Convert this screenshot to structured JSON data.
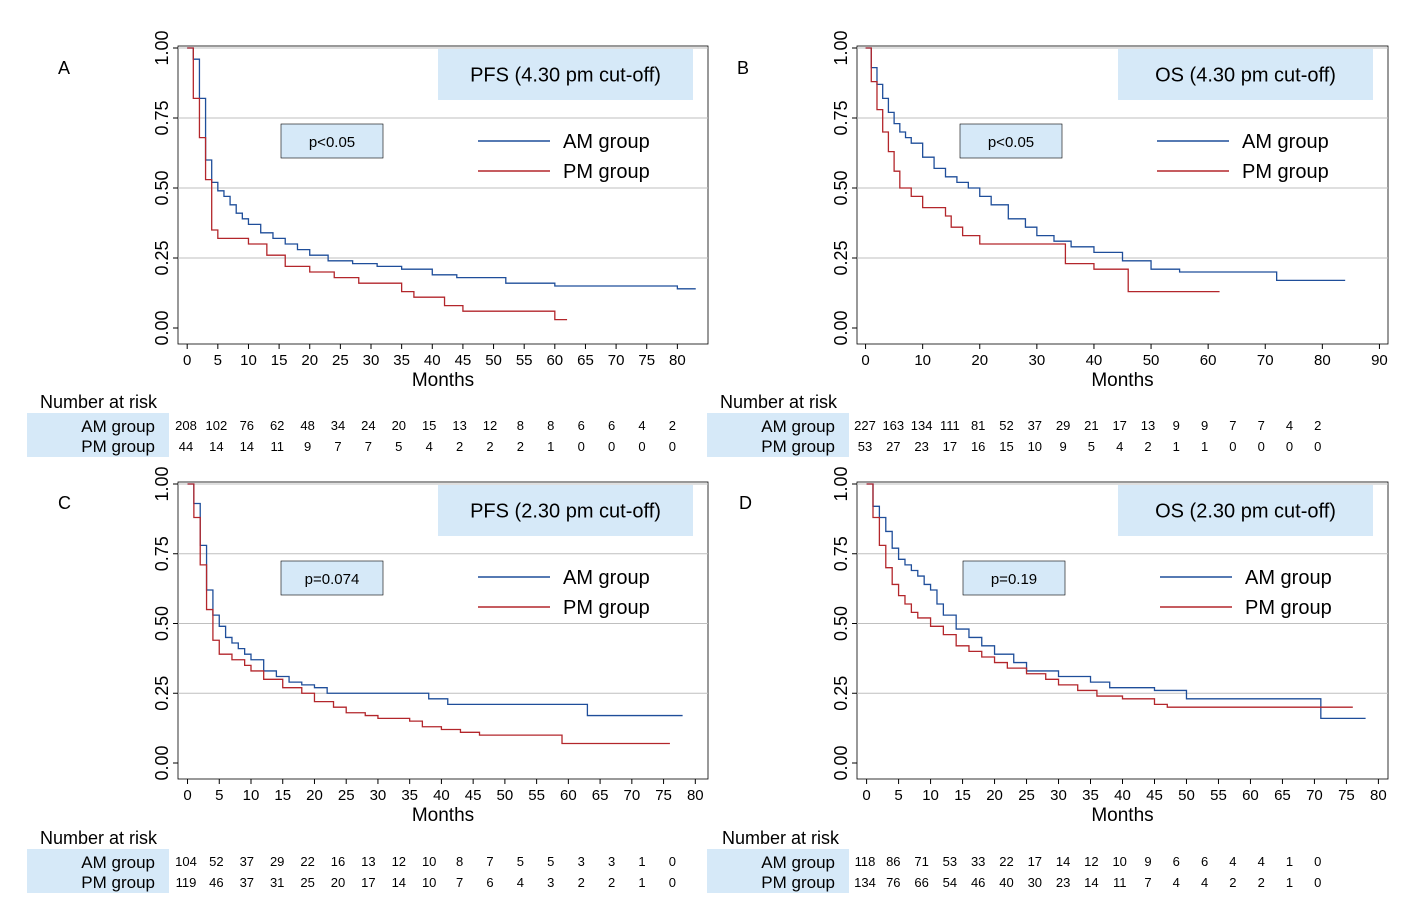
{
  "colors": {
    "am": "#1f4e9a",
    "pm": "#b3262b",
    "box": "#d6e9f8"
  },
  "chart_data": [
    {
      "type": "line",
      "panel": "A",
      "title": "PFS (4.30 pm cut-off)",
      "pvalue": "p<0.05",
      "xlabel": "Months",
      "xticks": [
        0,
        5,
        10,
        15,
        20,
        25,
        30,
        35,
        40,
        45,
        50,
        55,
        60,
        65,
        70,
        75,
        80
      ],
      "yticks": [
        "0.00",
        "0.25",
        "0.50",
        "0.75",
        "1.00"
      ],
      "xlim": [
        -1.5,
        85
      ],
      "ylim": [
        0,
        1
      ],
      "grid": true,
      "legend": "top-right",
      "series": [
        {
          "name": "AM group",
          "x": [
            0,
            1,
            2,
            3,
            4,
            5,
            6,
            7,
            8,
            9,
            10,
            12,
            14,
            16,
            18,
            20,
            23,
            27,
            31,
            35,
            40,
            44,
            47,
            52,
            60,
            63,
            70,
            80,
            83
          ],
          "y": [
            1.0,
            0.96,
            0.82,
            0.6,
            0.52,
            0.49,
            0.47,
            0.44,
            0.41,
            0.39,
            0.37,
            0.34,
            0.32,
            0.3,
            0.28,
            0.26,
            0.24,
            0.23,
            0.22,
            0.21,
            0.19,
            0.18,
            0.18,
            0.16,
            0.15,
            0.15,
            0.15,
            0.14,
            0.14
          ]
        },
        {
          "name": "PM group",
          "x": [
            0,
            1,
            2,
            3,
            4,
            5,
            10,
            13,
            16,
            20,
            24,
            28,
            30,
            35,
            37,
            42,
            45,
            50,
            55,
            59,
            60,
            62
          ],
          "y": [
            1.0,
            0.82,
            0.68,
            0.53,
            0.35,
            0.32,
            0.3,
            0.26,
            0.22,
            0.2,
            0.18,
            0.16,
            0.16,
            0.13,
            0.11,
            0.08,
            0.06,
            0.06,
            0.06,
            0.06,
            0.03,
            0.03
          ]
        }
      ],
      "risk": {
        "x": [
          0,
          5,
          10,
          15,
          20,
          25,
          30,
          35,
          40,
          45,
          50,
          55,
          60,
          65,
          70,
          75,
          80
        ],
        "am": [
          "208",
          "102",
          "76",
          "62",
          "48",
          "34",
          "24",
          "20",
          "15",
          "13",
          "12",
          "8",
          "8",
          "6",
          "6",
          "4",
          "2"
        ],
        "pm": [
          "44",
          "14",
          "14",
          "11",
          "9",
          "7",
          "7",
          "5",
          "4",
          "2",
          "2",
          "2",
          "1",
          "0",
          "0",
          "0",
          "0"
        ]
      }
    },
    {
      "type": "line",
      "panel": "B",
      "title": "OS (4.30 pm cut-off)",
      "pvalue": "p<0.05",
      "xlabel": "Months",
      "xticks": [
        0,
        10,
        20,
        30,
        40,
        50,
        60,
        70,
        80,
        90
      ],
      "yticks": [
        "0.00",
        "0.25",
        "0.50",
        "0.75",
        "1.00"
      ],
      "xlim": [
        -1.5,
        91.5
      ],
      "ylim": [
        0,
        1
      ],
      "grid": true,
      "legend": "top-right",
      "series": [
        {
          "name": "AM group",
          "x": [
            0,
            1,
            2,
            3,
            4,
            5,
            6,
            7,
            8,
            10,
            12,
            14,
            16,
            18,
            20,
            22,
            25,
            28,
            30,
            33,
            36,
            40,
            45,
            50,
            55,
            60,
            65,
            70,
            72,
            80,
            84
          ],
          "y": [
            1.0,
            0.93,
            0.87,
            0.82,
            0.77,
            0.73,
            0.7,
            0.68,
            0.66,
            0.61,
            0.57,
            0.54,
            0.52,
            0.5,
            0.47,
            0.44,
            0.39,
            0.36,
            0.33,
            0.31,
            0.29,
            0.27,
            0.24,
            0.21,
            0.2,
            0.2,
            0.2,
            0.2,
            0.17,
            0.17,
            0.17
          ]
        },
        {
          "name": "PM group",
          "x": [
            0,
            1,
            2,
            3,
            4,
            5,
            6,
            8,
            10,
            12,
            14,
            15,
            17,
            20,
            25,
            28,
            30,
            32,
            35,
            40,
            44,
            46,
            50,
            55,
            60,
            62
          ],
          "y": [
            1.0,
            0.88,
            0.78,
            0.7,
            0.63,
            0.56,
            0.5,
            0.47,
            0.43,
            0.43,
            0.4,
            0.36,
            0.33,
            0.3,
            0.3,
            0.3,
            0.3,
            0.3,
            0.23,
            0.21,
            0.21,
            0.13,
            0.13,
            0.13,
            0.13,
            0.13
          ]
        }
      ],
      "risk": {
        "x": [
          0,
          5,
          10,
          15,
          20,
          25,
          30,
          35,
          40,
          45,
          50,
          55,
          60,
          65,
          70,
          75,
          80
        ],
        "am": [
          "227",
          "163",
          "134",
          "111",
          "81",
          "52",
          "37",
          "29",
          "21",
          "17",
          "13",
          "9",
          "9",
          "7",
          "7",
          "4",
          "2"
        ],
        "pm": [
          "53",
          "27",
          "23",
          "17",
          "16",
          "15",
          "10",
          "9",
          "5",
          "4",
          "2",
          "1",
          "1",
          "0",
          "0",
          "0",
          "0"
        ]
      }
    },
    {
      "type": "line",
      "panel": "C",
      "title": "PFS (2.30 pm cut-off)",
      "pvalue": "p=0.074",
      "xlabel": "Months",
      "xticks": [
        0,
        5,
        10,
        15,
        20,
        25,
        30,
        35,
        40,
        45,
        50,
        55,
        60,
        65,
        70,
        75,
        80
      ],
      "yticks": [
        "0.00",
        "0.25",
        "0.50",
        "0.75",
        "1.00"
      ],
      "xlim": [
        -1.5,
        82
      ],
      "ylim": [
        0,
        1
      ],
      "grid": true,
      "legend": "top-right",
      "series": [
        {
          "name": "AM group",
          "x": [
            0,
            1,
            2,
            3,
            4,
            5,
            6,
            7,
            8,
            9,
            10,
            12,
            14,
            16,
            18,
            20,
            22,
            25,
            30,
            35,
            38,
            41,
            45,
            50,
            55,
            60,
            63,
            70,
            75,
            78
          ],
          "y": [
            1.0,
            0.93,
            0.78,
            0.62,
            0.53,
            0.49,
            0.45,
            0.43,
            0.41,
            0.39,
            0.37,
            0.33,
            0.31,
            0.29,
            0.28,
            0.27,
            0.25,
            0.25,
            0.25,
            0.25,
            0.23,
            0.21,
            0.21,
            0.21,
            0.21,
            0.21,
            0.17,
            0.17,
            0.17,
            0.17
          ]
        },
        {
          "name": "PM group",
          "x": [
            0,
            1,
            2,
            3,
            4,
            5,
            7,
            9,
            10,
            12,
            15,
            18,
            20,
            23,
            25,
            28,
            30,
            35,
            37,
            40,
            43,
            46,
            50,
            55,
            59,
            65,
            70,
            76
          ],
          "y": [
            1.0,
            0.88,
            0.71,
            0.55,
            0.44,
            0.39,
            0.37,
            0.35,
            0.33,
            0.3,
            0.27,
            0.25,
            0.22,
            0.2,
            0.18,
            0.17,
            0.16,
            0.15,
            0.13,
            0.12,
            0.11,
            0.1,
            0.1,
            0.1,
            0.07,
            0.07,
            0.07,
            0.07
          ]
        }
      ],
      "risk": {
        "x": [
          0,
          5,
          10,
          15,
          20,
          25,
          30,
          35,
          40,
          45,
          50,
          55,
          60,
          65,
          70,
          75,
          80
        ],
        "am": [
          "104",
          "52",
          "37",
          "29",
          "22",
          "16",
          "13",
          "12",
          "10",
          "8",
          "7",
          "5",
          "5",
          "3",
          "3",
          "1",
          "0"
        ],
        "pm": [
          "119",
          "46",
          "37",
          "31",
          "25",
          "20",
          "17",
          "14",
          "10",
          "7",
          "6",
          "4",
          "3",
          "2",
          "2",
          "1",
          "0"
        ]
      }
    },
    {
      "type": "line",
      "panel": "D",
      "title": "OS (2.30 pm cut-off)",
      "pvalue": "p=0.19",
      "xlabel": "Months",
      "xticks": [
        0,
        5,
        10,
        15,
        20,
        25,
        30,
        35,
        40,
        45,
        50,
        55,
        60,
        65,
        70,
        75,
        80
      ],
      "yticks": [
        "0.00",
        "0.25",
        "0.50",
        "0.75",
        "1.00"
      ],
      "xlim": [
        -1.5,
        81.5
      ],
      "ylim": [
        0,
        1
      ],
      "grid": true,
      "legend": "top-right",
      "series": [
        {
          "name": "AM group",
          "x": [
            0,
            1,
            2,
            3,
            4,
            5,
            6,
            7,
            8,
            9,
            10,
            11,
            12,
            14,
            16,
            18,
            20,
            23,
            25,
            30,
            35,
            38,
            42,
            45,
            50,
            55,
            60,
            65,
            71,
            75,
            78
          ],
          "y": [
            1.0,
            0.92,
            0.88,
            0.83,
            0.77,
            0.73,
            0.71,
            0.69,
            0.67,
            0.64,
            0.62,
            0.57,
            0.53,
            0.48,
            0.45,
            0.42,
            0.39,
            0.36,
            0.33,
            0.31,
            0.29,
            0.27,
            0.27,
            0.26,
            0.23,
            0.23,
            0.23,
            0.23,
            0.16,
            0.16,
            0.16
          ]
        },
        {
          "name": "PM group",
          "x": [
            0,
            1,
            2,
            3,
            4,
            5,
            6,
            7,
            8,
            10,
            12,
            14,
            16,
            18,
            20,
            22,
            25,
            28,
            30,
            33,
            36,
            40,
            45,
            47,
            50,
            55,
            60,
            65,
            70,
            76
          ],
          "y": [
            1.0,
            0.88,
            0.78,
            0.7,
            0.64,
            0.6,
            0.57,
            0.54,
            0.52,
            0.49,
            0.46,
            0.42,
            0.4,
            0.38,
            0.36,
            0.34,
            0.32,
            0.3,
            0.28,
            0.26,
            0.24,
            0.23,
            0.21,
            0.2,
            0.2,
            0.2,
            0.2,
            0.2,
            0.2,
            0.2
          ]
        }
      ],
      "risk": {
        "x": [
          0,
          5,
          10,
          15,
          20,
          25,
          30,
          35,
          40,
          45,
          50,
          55,
          60,
          65,
          70,
          75,
          80
        ],
        "am": [
          "118",
          "86",
          "71",
          "53",
          "33",
          "22",
          "17",
          "14",
          "12",
          "10",
          "9",
          "6",
          "6",
          "4",
          "4",
          "1",
          "0"
        ],
        "pm": [
          "134",
          "76",
          "66",
          "54",
          "46",
          "40",
          "30",
          "23",
          "14",
          "11",
          "7",
          "4",
          "4",
          "2",
          "2",
          "1",
          "0"
        ]
      }
    }
  ],
  "labels": {
    "risk_header": "Number at risk",
    "am_group": "AM group",
    "pm_group": "PM group"
  }
}
